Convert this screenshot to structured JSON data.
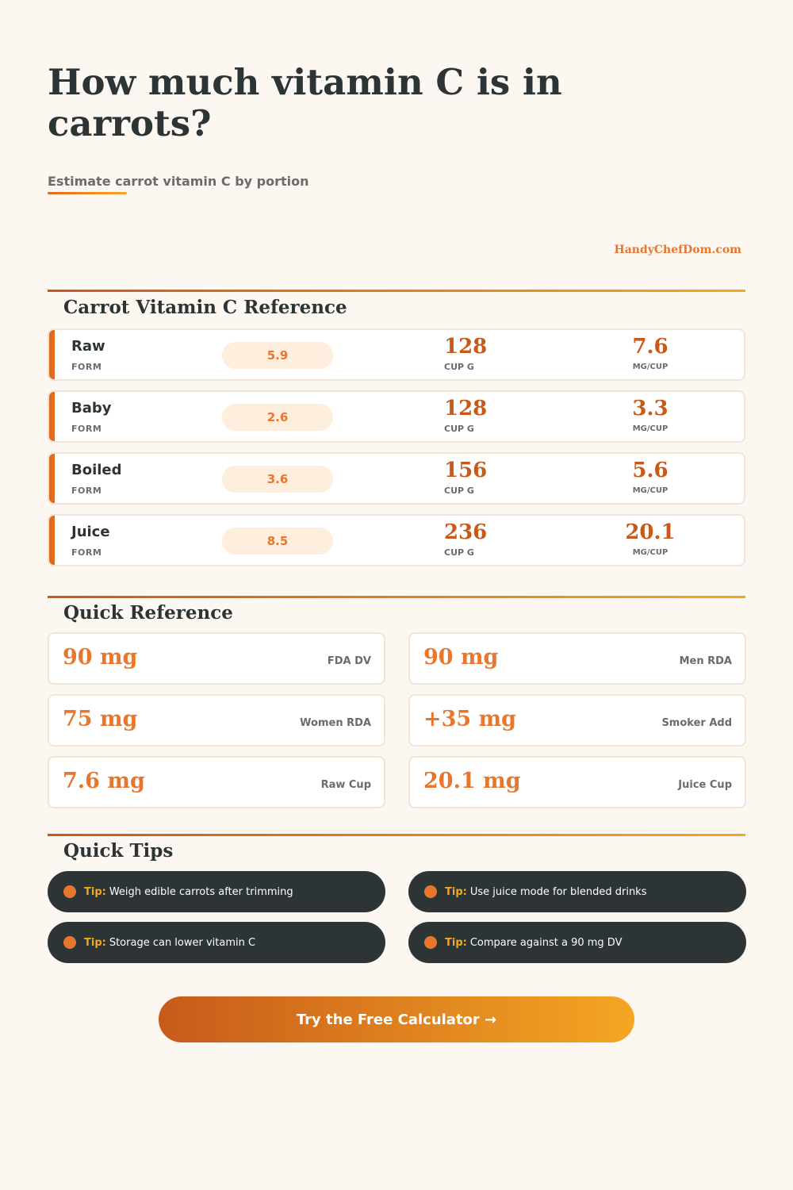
{
  "header": {
    "title": "How much vitamin C is in carrots?",
    "subtitle": "Estimate carrot vitamin C by portion",
    "brand": "HandyChefDom.com"
  },
  "reference": {
    "title": "Carrot Vitamin C Reference",
    "rows": [
      {
        "form": "Raw",
        "form_label": "FORM",
        "per_100g": "5.9",
        "cup_g": "128",
        "cup_g_label": "CUP G",
        "mg_cup": "7.6",
        "mg_cup_label": "MG/CUP"
      },
      {
        "form": "Baby",
        "form_label": "FORM",
        "per_100g": "2.6",
        "cup_g": "128",
        "cup_g_label": "CUP G",
        "mg_cup": "3.3",
        "mg_cup_label": "MG/CUP"
      },
      {
        "form": "Boiled",
        "form_label": "FORM",
        "per_100g": "3.6",
        "cup_g": "156",
        "cup_g_label": "CUP G",
        "mg_cup": "5.6",
        "mg_cup_label": "MG/CUP"
      },
      {
        "form": "Juice",
        "form_label": "FORM",
        "per_100g": "8.5",
        "cup_g": "236",
        "cup_g_label": "CUP G",
        "mg_cup": "20.1",
        "mg_cup_label": "MG/CUP"
      }
    ]
  },
  "quick_reference": {
    "title": "Quick Reference",
    "cards": [
      {
        "value": "90 mg",
        "label": "FDA DV"
      },
      {
        "value": "90 mg",
        "label": "Men RDA"
      },
      {
        "value": "75 mg",
        "label": "Women RDA"
      },
      {
        "value": "+35 mg",
        "label": "Smoker Add"
      },
      {
        "value": "7.6 mg",
        "label": "Raw Cup"
      },
      {
        "value": "20.1 mg",
        "label": "Juice Cup"
      }
    ]
  },
  "tips": {
    "title": "Quick Tips",
    "prefix": "Tip:",
    "items": [
      "Weigh edible carrots after trimming",
      "Use juice mode for blended drinks",
      "Storage can lower vitamin C",
      "Compare against a 90 mg DV"
    ]
  },
  "cta": {
    "label": "Try the Free Calculator →"
  },
  "colors": {
    "background": "#fcf7f1",
    "accent_orange": "#e8772e",
    "accent_dark_orange": "#c75a1a",
    "accent_gold": "#f5a623",
    "dark": "#2d3436"
  },
  "icons": {
    "tip_bullet": "dot-icon"
  }
}
